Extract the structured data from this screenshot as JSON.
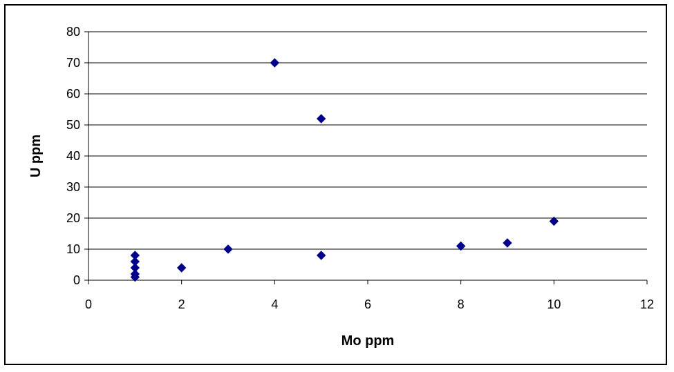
{
  "chart_data": {
    "type": "scatter",
    "title": "",
    "xlabel": "Mo ppm",
    "ylabel": "U ppm",
    "xlim": [
      0,
      12
    ],
    "ylim": [
      0,
      80
    ],
    "x_ticks": [
      0,
      2,
      4,
      6,
      8,
      10,
      12
    ],
    "y_ticks": [
      0,
      10,
      20,
      30,
      40,
      50,
      60,
      70,
      80
    ],
    "x_tick_labels": [
      "0",
      "2",
      "4",
      "6",
      "8",
      "10",
      "12"
    ],
    "y_tick_labels": [
      "0",
      "10",
      "20",
      "30",
      "40",
      "50",
      "60",
      "70",
      "80"
    ],
    "grid": "horizontal major gridlines",
    "legend": "none",
    "marker": "diamond",
    "marker_color": "#00008B",
    "series": [
      {
        "points": [
          {
            "x": 1,
            "y": 1
          },
          {
            "x": 1,
            "y": 2
          },
          {
            "x": 1,
            "y": 4
          },
          {
            "x": 1,
            "y": 6
          },
          {
            "x": 1,
            "y": 8
          },
          {
            "x": 2,
            "y": 4
          },
          {
            "x": 3,
            "y": 10
          },
          {
            "x": 4,
            "y": 70
          },
          {
            "x": 5,
            "y": 52
          },
          {
            "x": 5,
            "y": 8
          },
          {
            "x": 8,
            "y": 11
          },
          {
            "x": 9,
            "y": 12
          },
          {
            "x": 10,
            "y": 19
          }
        ]
      }
    ]
  }
}
